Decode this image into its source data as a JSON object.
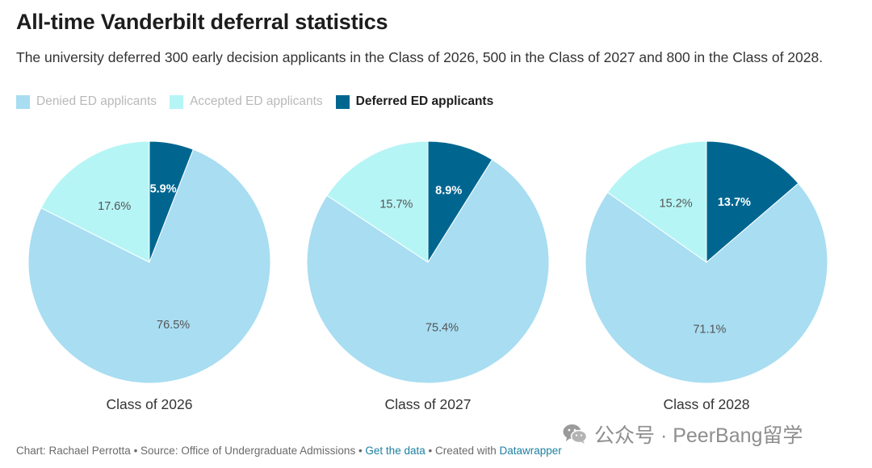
{
  "header": {
    "title": "All-time Vanderbilt deferral statistics",
    "subtitle": "The university deferred 300 early decision applicants in the Class of 2026, 500 in the Class of 2027 and 800 in the Class of 2028."
  },
  "legend": [
    {
      "label": "Denied ED applicants",
      "color": "#a8ddf2",
      "active": false
    },
    {
      "label": "Accepted ED applicants",
      "color": "#b6f5f5",
      "active": false
    },
    {
      "label": "Deferred ED applicants",
      "color": "#006690",
      "active": true
    }
  ],
  "chart_data": [
    {
      "type": "pie",
      "caption": "Class of 2026",
      "slices": [
        {
          "label": "Deferred ED applicants",
          "value": 5.9,
          "display": "5.9%",
          "color": "#006690"
        },
        {
          "label": "Denied ED applicants",
          "value": 76.5,
          "display": "76.5%",
          "color": "#a8ddf2"
        },
        {
          "label": "Accepted ED applicants",
          "value": 17.6,
          "display": "17.6%",
          "color": "#b6f5f5"
        }
      ]
    },
    {
      "type": "pie",
      "caption": "Class of 2027",
      "slices": [
        {
          "label": "Deferred ED applicants",
          "value": 8.9,
          "display": "8.9%",
          "color": "#006690"
        },
        {
          "label": "Denied ED applicants",
          "value": 75.4,
          "display": "75.4%",
          "color": "#a8ddf2"
        },
        {
          "label": "Accepted ED applicants",
          "value": 15.7,
          "display": "15.7%",
          "color": "#b6f5f5"
        }
      ]
    },
    {
      "type": "pie",
      "caption": "Class of 2028",
      "slices": [
        {
          "label": "Deferred ED applicants",
          "value": 13.7,
          "display": "13.7%",
          "color": "#006690"
        },
        {
          "label": "Denied ED applicants",
          "value": 71.1,
          "display": "71.1%",
          "color": "#a8ddf2"
        },
        {
          "label": "Accepted ED applicants",
          "value": 15.2,
          "display": "15.2%",
          "color": "#b6f5f5"
        }
      ]
    }
  ],
  "footer": {
    "credit": "Chart: Rachael Perrotta • Source: Office of Undergraduate Admissions • ",
    "data_link": "Get the data",
    "created": " • Created with ",
    "tool_link": "Datawrapper"
  },
  "watermark": {
    "text": "公众号 · PeerBang留学",
    "icon": "wechat-icon"
  }
}
